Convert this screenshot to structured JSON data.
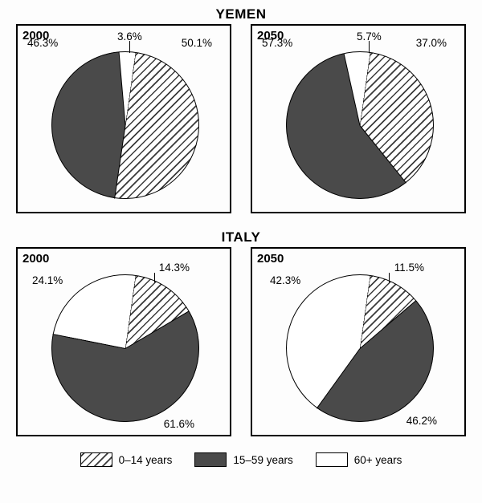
{
  "countries": {
    "yemen": {
      "title": "YEMEN"
    },
    "italy": {
      "title": "ITALY"
    }
  },
  "charts": {
    "yemen_2000": {
      "year": "2000",
      "slices": [
        {
          "label": "50.1%",
          "value": 50.1,
          "fill": "hatch"
        },
        {
          "label": "46.3%",
          "value": 46.3,
          "fill": "dark"
        },
        {
          "label": "3.6%",
          "value": 3.6,
          "fill": "white"
        }
      ]
    },
    "yemen_2050": {
      "year": "2050",
      "slices": [
        {
          "label": "37.0%",
          "value": 37.0,
          "fill": "hatch"
        },
        {
          "label": "57.3%",
          "value": 57.3,
          "fill": "dark"
        },
        {
          "label": "5.7%",
          "value": 5.7,
          "fill": "white"
        }
      ]
    },
    "italy_2000": {
      "year": "2000",
      "slices": [
        {
          "label": "14.3%",
          "value": 14.3,
          "fill": "hatch"
        },
        {
          "label": "61.6%",
          "value": 61.6,
          "fill": "dark"
        },
        {
          "label": "24.1%",
          "value": 24.1,
          "fill": "white"
        }
      ]
    },
    "italy_2050": {
      "year": "2050",
      "slices": [
        {
          "label": "11.5%",
          "value": 11.5,
          "fill": "hatch"
        },
        {
          "label": "46.2%",
          "value": 46.2,
          "fill": "dark"
        },
        {
          "label": "42.3%",
          "value": 42.3,
          "fill": "white"
        }
      ]
    }
  },
  "legend": {
    "hatch": "0–14 years",
    "dark": "15–59 years",
    "white": "60+ years"
  },
  "style": {
    "colors": {
      "dark": "#4a4a4a",
      "white": "#ffffff",
      "hatch_fg": "#3a3a3a",
      "hatch_bg": "#ffffff",
      "border": "#000000",
      "bg": "#fdfdfd"
    },
    "hatch_spacing": 7,
    "hatch_width": 1.6,
    "pie_start_angle_deg": 8,
    "font_family": "Arial, Helvetica, sans-serif"
  }
}
